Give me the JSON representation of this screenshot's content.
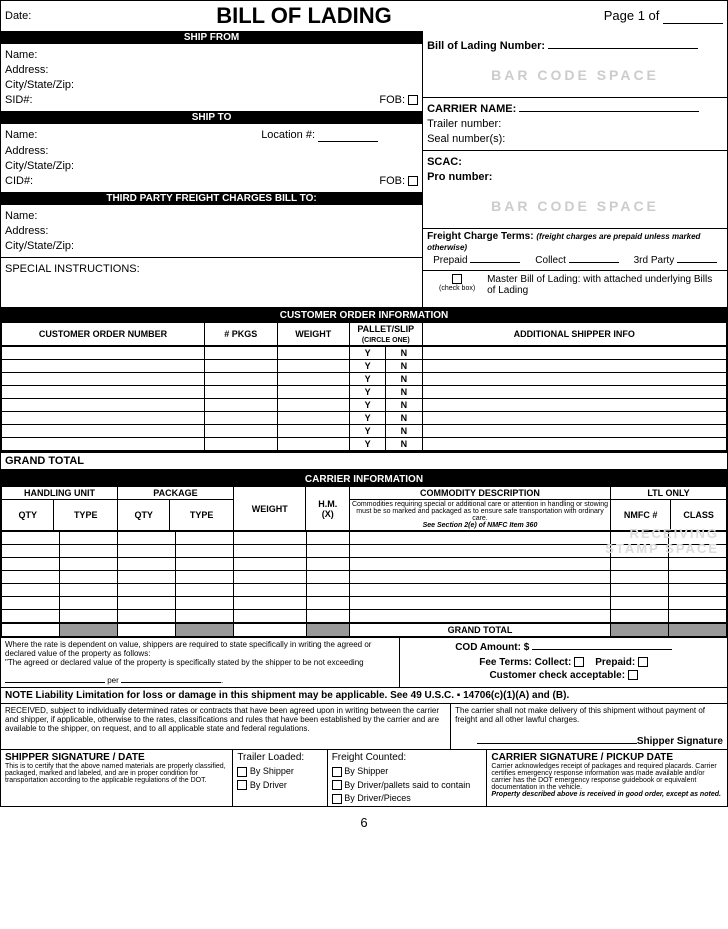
{
  "header": {
    "date_label": "Date:",
    "title": "BILL OF LADING",
    "page_label": "Page 1 of"
  },
  "ship_from": {
    "bar": "SHIP FROM",
    "name": "Name:",
    "address": "Address:",
    "csz": "City/State/Zip:",
    "sid": "SID#:",
    "fob": "FOB:"
  },
  "ship_to": {
    "bar": "SHIP TO",
    "name": "Name:",
    "loc": "Location #:",
    "address": "Address:",
    "csz": "City/State/Zip:",
    "cid": "CID#:",
    "fob": "FOB:"
  },
  "third": {
    "bar": "THIRD PARTY FREIGHT CHARGES BILL TO:",
    "name": "Name:",
    "address": "Address:",
    "csz": "City/State/Zip:"
  },
  "special": "SPECIAL INSTRUCTIONS:",
  "bol_no": "Bill of Lading Number:",
  "barcode_text": "BAR CODE SPACE",
  "carrier": {
    "name": "CARRIER NAME:",
    "trailer": "Trailer number:",
    "seal": "Seal number(s):",
    "scac": "SCAC:",
    "pro": "Pro number:"
  },
  "freight_terms": {
    "title": "Freight Charge Terms:",
    "note": "(freight charges are prepaid unless marked otherwise)",
    "prepaid": "Prepaid",
    "collect": "Collect",
    "third": "3rd Party",
    "checkbox_label": "(check box)",
    "master": "Master Bill of Lading: with attached underlying Bills of Lading"
  },
  "coi": {
    "bar": "CUSTOMER ORDER INFORMATION",
    "con": "CUSTOMER ORDER NUMBER",
    "pkgs": "# PKGS",
    "weight": "WEIGHT",
    "pallet": "PALLET/SLIP",
    "circle": "(CIRCLE ONE)",
    "asi": "ADDITIONAL SHIPPER INFO",
    "y": "Y",
    "n": "N",
    "rows": 8
  },
  "grand_total": "GRAND TOTAL",
  "ci": {
    "bar": "CARRIER INFORMATION",
    "handling": "HANDLING UNIT",
    "package": "PACKAGE",
    "qty": "QTY",
    "type": "TYPE",
    "weight": "WEIGHT",
    "hm": "H.M.",
    "hmx": "(X)",
    "commodity": "COMMODITY DESCRIPTION",
    "commodity_note": "Commodities requiring special or additional care or attention in handling or stowing must be so marked and packaged as to ensure safe transportation with ordinary care.",
    "section": "See Section 2(e) of NMFC Item 360",
    "ltl": "LTL ONLY",
    "nmfc": "NMFC #",
    "class": "CLASS",
    "rows": 7
  },
  "cod": {
    "rate_text": "Where the rate is dependent on value, shippers are required to state specifically in writing the agreed or declared value of the property as follows:",
    "rate_text2": "\"The agreed or declared value of the property is specifically stated by the shipper to be not exceeding",
    "per": "per",
    "amount": "COD Amount:  $",
    "fee": "Fee Terms:    Collect:",
    "prepaid": "Prepaid:",
    "customer_check": "Customer check acceptable:"
  },
  "note_line": "NOTE  Liability Limitation for loss or damage in this shipment may be applicable.  See 49 U.S.C. ▪ 14706(c)(1)(A) and (B).",
  "received": "RECEIVED, subject to individually determined rates or contracts that have been agreed upon in writing between the carrier and shipper, if applicable, otherwise to the rates, classifications and rules that have been established by the carrier and are available to the shipper, on request, and to all applicable state and federal regulations.",
  "carrier_no_delivery": "The carrier shall not make delivery of this shipment without payment of freight and all other lawful charges.",
  "shipper_sig_line": "Shipper Signature",
  "ship_sig": {
    "title": "SHIPPER SIGNATURE / DATE",
    "text": "This is to certify that the above named materials are properly classified, packaged, marked and labeled, and are in proper condition for transportation according to the applicable regulations of the DOT."
  },
  "trailer": {
    "title": "Trailer Loaded:",
    "by_shipper": "By Shipper",
    "by_driver": "By Driver"
  },
  "freight_counted": {
    "title": "Freight Counted:",
    "by_shipper": "By Shipper",
    "by_driver_pallets": "By Driver/pallets said to contain",
    "by_driver_pieces": "By Driver/Pieces"
  },
  "carr_sig": {
    "title": "CARRIER SIGNATURE / PICKUP DATE",
    "text": "Carrier acknowledges receipt of packages and required placards.  Carrier certifies emergency response information was made available and/or carrier has the DOT emergency response guidebook or equivalent documentation in the vehicle.",
    "bold": "Property described above is received in good order, except as noted."
  },
  "pagenum": "6",
  "colors": {
    "black": "#000000",
    "white": "#ffffff",
    "grey_text": "#cccccc",
    "shaded": "#999999"
  }
}
